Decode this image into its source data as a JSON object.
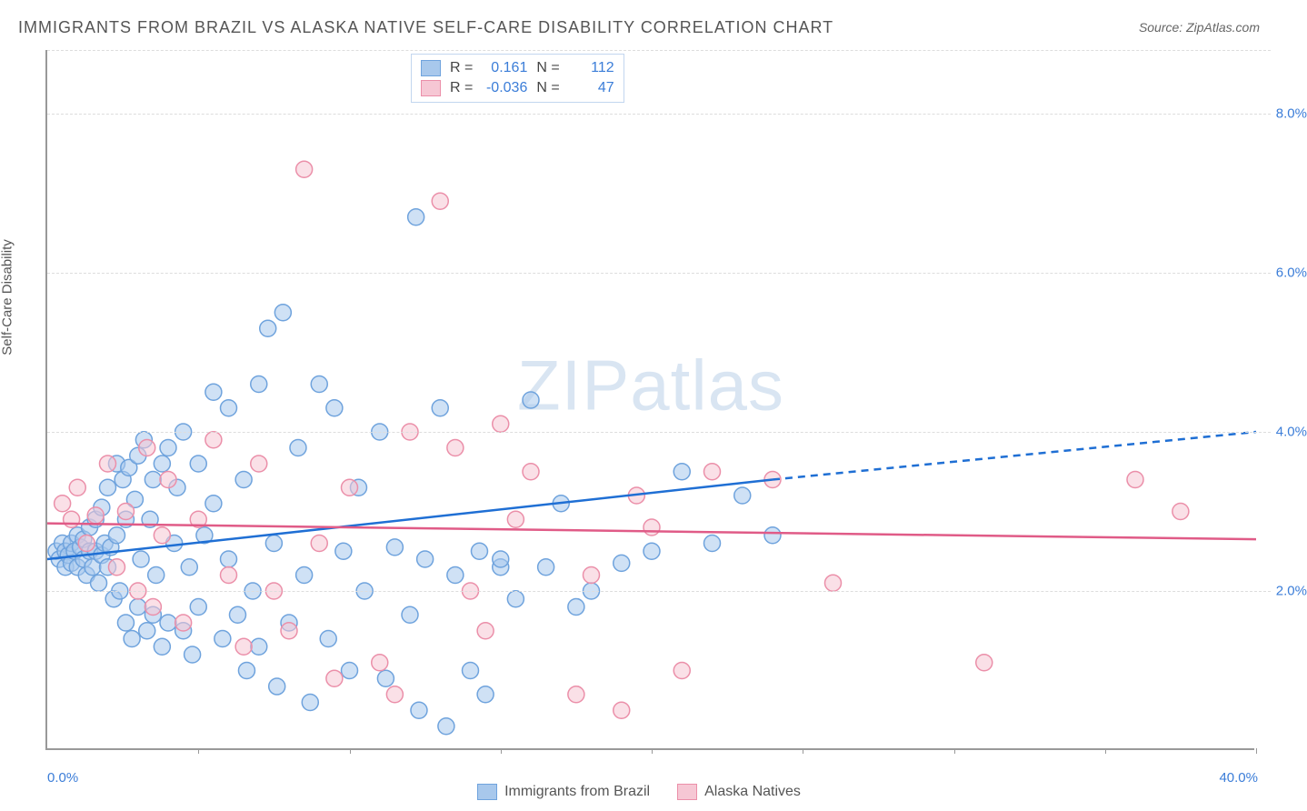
{
  "title": "IMMIGRANTS FROM BRAZIL VS ALASKA NATIVE SELF-CARE DISABILITY CORRELATION CHART",
  "source_label": "Source: ZipAtlas.com",
  "ylabel": "Self-Care Disability",
  "watermark": {
    "bold": "ZIP",
    "rest": "atlas"
  },
  "chart": {
    "type": "scatter",
    "background_color": "#ffffff",
    "grid_color": "#dddddd",
    "axis_color": "#999999",
    "xlim": [
      0,
      40
    ],
    "ylim": [
      0,
      8.8
    ],
    "ytick_values": [
      2.0,
      4.0,
      6.0,
      8.0
    ],
    "ytick_labels": [
      "2.0%",
      "4.0%",
      "6.0%",
      "8.0%"
    ],
    "xtick_values": [
      5,
      10,
      15,
      20,
      25,
      30,
      35,
      40
    ],
    "x_origin_label": "0.0%",
    "x_max_label": "40.0%",
    "marker_radius": 9,
    "marker_stroke_width": 1.5,
    "series": [
      {
        "name": "Immigrants from Brazil",
        "fill_color": "#a8c8ec",
        "stroke_color": "#6fa3dd",
        "fill_opacity": 0.55,
        "line_color": "#1f6fd4",
        "line_width": 2.5,
        "R": "0.161",
        "N": "112",
        "trend": {
          "x1": 0,
          "y1": 2.4,
          "x2": 24,
          "y2": 3.4,
          "x_dash_to": 40,
          "y_dash_to": 4.0
        },
        "points": [
          [
            0.3,
            2.5
          ],
          [
            0.4,
            2.4
          ],
          [
            0.5,
            2.6
          ],
          [
            0.6,
            2.3
          ],
          [
            0.6,
            2.5
          ],
          [
            0.7,
            2.45
          ],
          [
            0.8,
            2.6
          ],
          [
            0.8,
            2.35
          ],
          [
            0.9,
            2.5
          ],
          [
            1.0,
            2.7
          ],
          [
            1.0,
            2.3
          ],
          [
            1.1,
            2.55
          ],
          [
            1.2,
            2.4
          ],
          [
            1.2,
            2.65
          ],
          [
            1.3,
            2.2
          ],
          [
            1.4,
            2.5
          ],
          [
            1.4,
            2.8
          ],
          [
            1.5,
            2.3
          ],
          [
            1.6,
            2.5
          ],
          [
            1.6,
            2.9
          ],
          [
            1.7,
            2.1
          ],
          [
            1.8,
            2.45
          ],
          [
            1.8,
            3.05
          ],
          [
            1.9,
            2.6
          ],
          [
            2.0,
            2.3
          ],
          [
            2.0,
            3.3
          ],
          [
            2.1,
            2.55
          ],
          [
            2.2,
            1.9
          ],
          [
            2.3,
            2.7
          ],
          [
            2.3,
            3.6
          ],
          [
            2.4,
            2.0
          ],
          [
            2.5,
            3.4
          ],
          [
            2.6,
            1.6
          ],
          [
            2.6,
            2.9
          ],
          [
            2.7,
            3.55
          ],
          [
            2.8,
            1.4
          ],
          [
            2.9,
            3.15
          ],
          [
            3.0,
            3.7
          ],
          [
            3.0,
            1.8
          ],
          [
            3.1,
            2.4
          ],
          [
            3.2,
            3.9
          ],
          [
            3.3,
            1.5
          ],
          [
            3.4,
            2.9
          ],
          [
            3.5,
            3.4
          ],
          [
            3.5,
            1.7
          ],
          [
            3.6,
            2.2
          ],
          [
            3.8,
            3.6
          ],
          [
            3.8,
            1.3
          ],
          [
            4.0,
            3.8
          ],
          [
            4.0,
            1.6
          ],
          [
            4.2,
            2.6
          ],
          [
            4.3,
            3.3
          ],
          [
            4.5,
            1.5
          ],
          [
            4.5,
            4.0
          ],
          [
            4.7,
            2.3
          ],
          [
            4.8,
            1.2
          ],
          [
            5.0,
            3.6
          ],
          [
            5.0,
            1.8
          ],
          [
            5.2,
            2.7
          ],
          [
            5.5,
            3.1
          ],
          [
            5.5,
            4.5
          ],
          [
            5.8,
            1.4
          ],
          [
            6.0,
            2.4
          ],
          [
            6.0,
            4.3
          ],
          [
            6.3,
            1.7
          ],
          [
            6.5,
            3.4
          ],
          [
            6.6,
            1.0
          ],
          [
            6.8,
            2.0
          ],
          [
            7.0,
            4.6
          ],
          [
            7.0,
            1.3
          ],
          [
            7.3,
            5.3
          ],
          [
            7.5,
            2.6
          ],
          [
            7.6,
            0.8
          ],
          [
            7.8,
            5.5
          ],
          [
            8.0,
            1.6
          ],
          [
            8.3,
            3.8
          ],
          [
            8.5,
            2.2
          ],
          [
            8.7,
            0.6
          ],
          [
            9.0,
            4.6
          ],
          [
            9.3,
            1.4
          ],
          [
            9.5,
            4.3
          ],
          [
            9.8,
            2.5
          ],
          [
            10.0,
            1.0
          ],
          [
            10.3,
            3.3
          ],
          [
            10.5,
            2.0
          ],
          [
            11.0,
            4.0
          ],
          [
            11.2,
            0.9
          ],
          [
            11.5,
            2.55
          ],
          [
            12.0,
            1.7
          ],
          [
            12.2,
            6.7
          ],
          [
            12.3,
            0.5
          ],
          [
            12.5,
            2.4
          ],
          [
            13.0,
            4.3
          ],
          [
            13.2,
            0.3
          ],
          [
            13.5,
            2.2
          ],
          [
            14.0,
            1.0
          ],
          [
            14.3,
            2.5
          ],
          [
            14.5,
            0.7
          ],
          [
            15.0,
            2.3
          ],
          [
            15.0,
            2.4
          ],
          [
            15.5,
            1.9
          ],
          [
            16.0,
            4.4
          ],
          [
            16.5,
            2.3
          ],
          [
            17.0,
            3.1
          ],
          [
            17.5,
            1.8
          ],
          [
            18.0,
            2.0
          ],
          [
            19.0,
            2.35
          ],
          [
            20.0,
            2.5
          ],
          [
            21.0,
            3.5
          ],
          [
            22.0,
            2.6
          ],
          [
            23.0,
            3.2
          ],
          [
            24.0,
            2.7
          ]
        ]
      },
      {
        "name": "Alaska Natives",
        "fill_color": "#f6c7d4",
        "stroke_color": "#eb8fa9",
        "fill_opacity": 0.55,
        "line_color": "#e05b87",
        "line_width": 2.5,
        "R": "-0.036",
        "N": "47",
        "trend": {
          "x1": 0,
          "y1": 2.85,
          "x2": 40,
          "y2": 2.65
        },
        "points": [
          [
            0.5,
            3.1
          ],
          [
            0.8,
            2.9
          ],
          [
            1.0,
            3.3
          ],
          [
            1.3,
            2.6
          ],
          [
            1.6,
            2.95
          ],
          [
            2.0,
            3.6
          ],
          [
            2.3,
            2.3
          ],
          [
            2.6,
            3.0
          ],
          [
            3.0,
            2.0
          ],
          [
            3.3,
            3.8
          ],
          [
            3.5,
            1.8
          ],
          [
            3.8,
            2.7
          ],
          [
            4.0,
            3.4
          ],
          [
            4.5,
            1.6
          ],
          [
            5.0,
            2.9
          ],
          [
            5.5,
            3.9
          ],
          [
            6.0,
            2.2
          ],
          [
            6.5,
            1.3
          ],
          [
            7.0,
            3.6
          ],
          [
            7.5,
            2.0
          ],
          [
            8.0,
            1.5
          ],
          [
            8.5,
            7.3
          ],
          [
            9.0,
            2.6
          ],
          [
            9.5,
            0.9
          ],
          [
            10.0,
            3.3
          ],
          [
            11.0,
            1.1
          ],
          [
            11.5,
            0.7
          ],
          [
            12.0,
            4.0
          ],
          [
            13.0,
            6.9
          ],
          [
            13.5,
            3.8
          ],
          [
            14.0,
            2.0
          ],
          [
            14.5,
            1.5
          ],
          [
            15.5,
            2.9
          ],
          [
            16.0,
            3.5
          ],
          [
            17.5,
            0.7
          ],
          [
            18.0,
            2.2
          ],
          [
            19.0,
            0.5
          ],
          [
            20.0,
            2.8
          ],
          [
            21.0,
            1.0
          ],
          [
            22.0,
            3.5
          ],
          [
            24.0,
            3.4
          ],
          [
            26.0,
            2.1
          ],
          [
            31.0,
            1.1
          ],
          [
            36.0,
            3.4
          ],
          [
            37.5,
            3.0
          ],
          [
            19.5,
            3.2
          ],
          [
            15.0,
            4.1
          ]
        ]
      }
    ]
  },
  "legend": {
    "series1": "Immigrants from Brazil",
    "series2": "Alaska Natives"
  },
  "stats": {
    "r_label": "R =",
    "n_label": "N ="
  }
}
